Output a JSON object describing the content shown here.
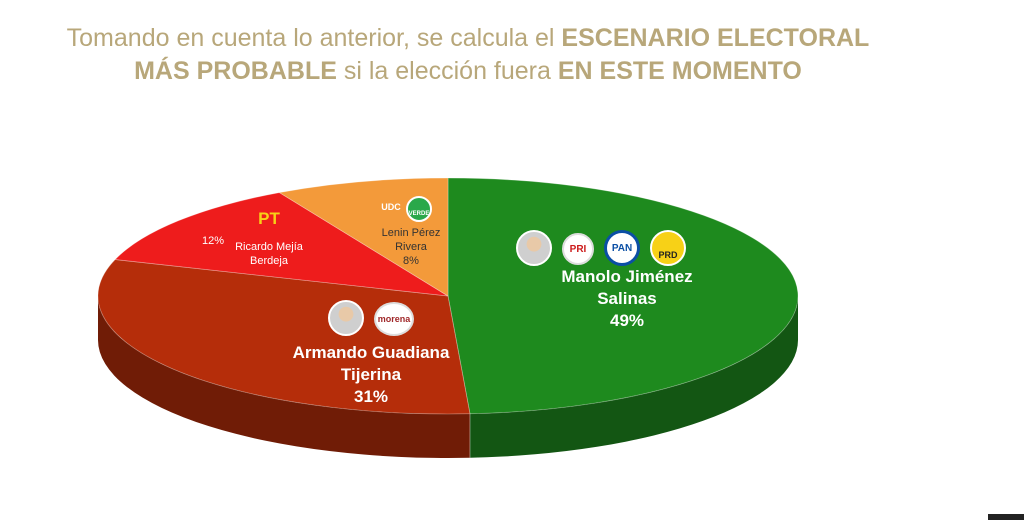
{
  "title": {
    "part1": "Tomando en cuenta lo anterior, se calcula el ",
    "part2_bold": "ESCENARIO ELECTORAL",
    "part3_bold": "MÁS PROBABLE",
    "part4": " si la elección fuera ",
    "part5_bold": "EN ESTE MOMENTO"
  },
  "chart_data": {
    "type": "pie",
    "series": [
      {
        "name": "Manolo Jiménez Salinas",
        "value": 49,
        "label": "49%",
        "color": "#1e8a1e",
        "parties": [
          "PRI",
          "PAN",
          "PRD"
        ]
      },
      {
        "name": "Armando Guadiana Tijerina",
        "value": 31,
        "label": "31%",
        "color": "#b52d0a",
        "parties": [
          "morena"
        ]
      },
      {
        "name": "Ricardo Mejía Berdeja",
        "value": 12,
        "label": "12%",
        "color": "#ee1c1c",
        "parties": [
          "PT"
        ]
      },
      {
        "name": "Lenin Pérez Rivera",
        "value": 8,
        "label": "8%",
        "color": "#f39a3a",
        "parties": [
          "UDC",
          "VERDE"
        ]
      }
    ]
  },
  "labels": {
    "manolo": {
      "line1": "Manolo Jiménez",
      "line2": "Salinas",
      "pct": "49%"
    },
    "armando": {
      "line1": "Armando Guadiana",
      "line2": "Tijerina",
      "pct": "31%"
    },
    "ricardo": {
      "pct": "12%",
      "line1": "Ricardo Mejía",
      "line2": "Berdeja"
    },
    "lenin": {
      "line1": "Lenin Pérez",
      "line2": "Rivera",
      "pct": "8%"
    }
  },
  "logos": {
    "pri": "PRI",
    "pan": "PAN",
    "prd": "PRD",
    "morena": "morena",
    "pt": "PT",
    "udc": "UDC",
    "verde": "VERDE"
  },
  "icons": {
    "manolo_photo": "person-photo-icon",
    "armando_photo": "person-photo-icon"
  }
}
